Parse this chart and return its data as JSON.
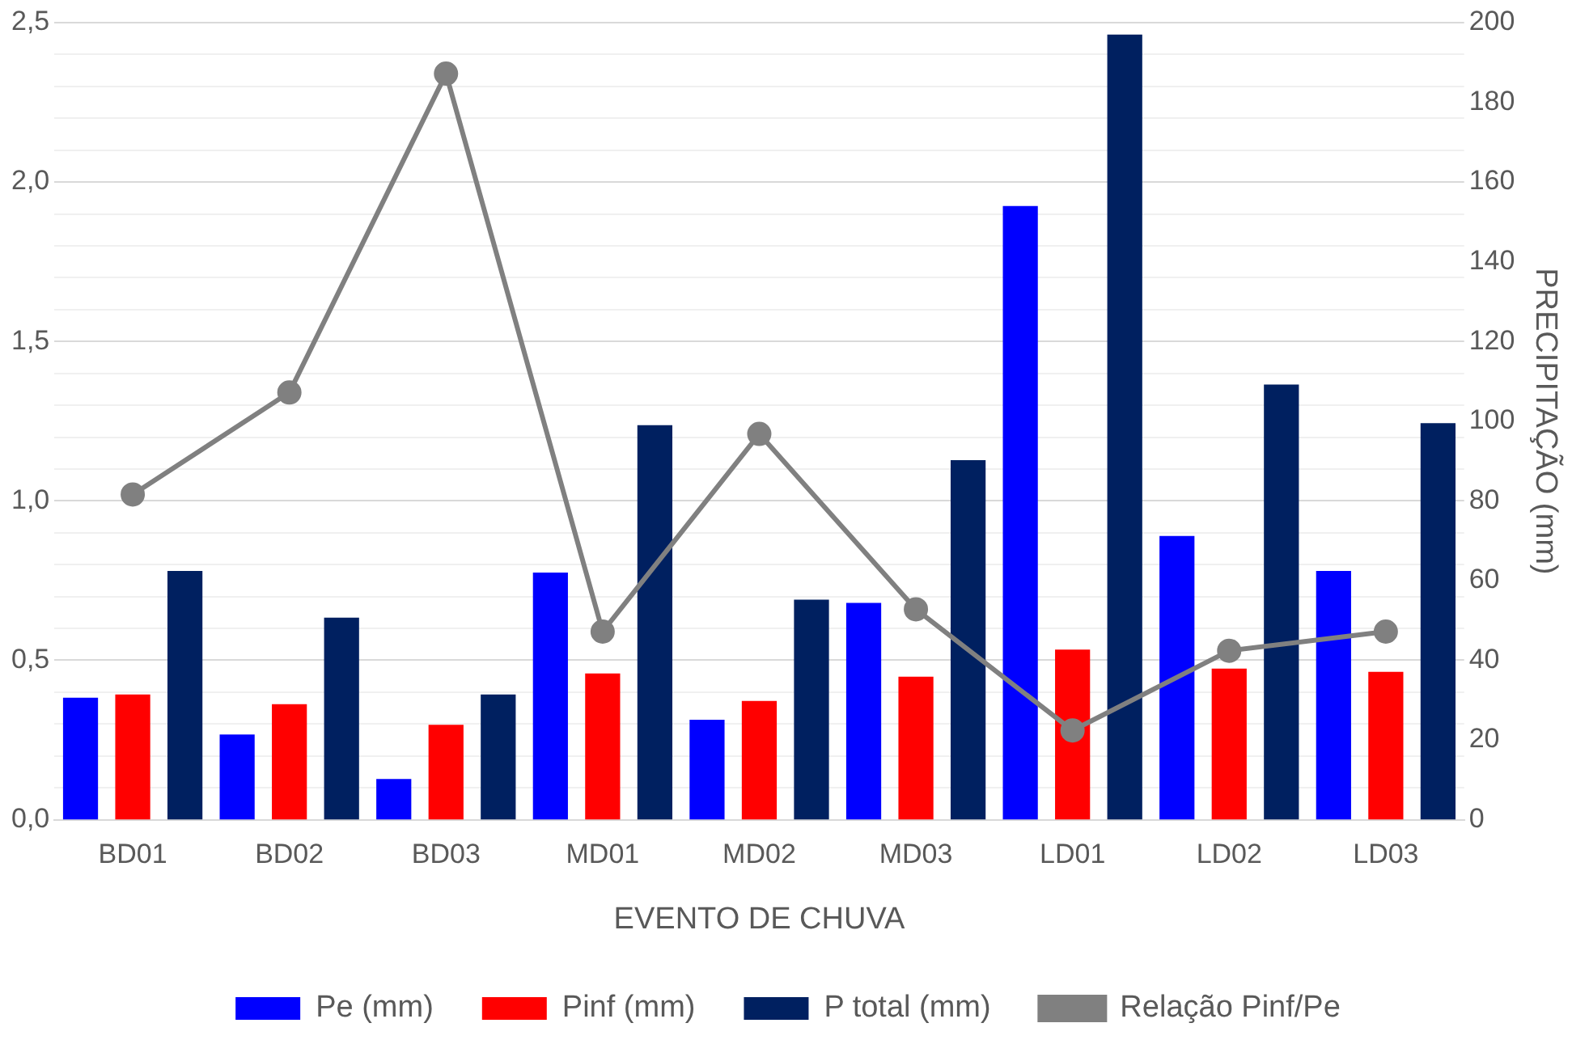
{
  "chart_data": {
    "type": "bar",
    "xlabel": "EVENTO DE CHUVA",
    "y2label": "PRECIPITAÇÃO (mm)",
    "categories": [
      "BD01",
      "BD02",
      "BD03",
      "MD01",
      "MD02",
      "MD03",
      "LD01",
      "LD02",
      "LD03"
    ],
    "series": [
      {
        "name": "Pe (mm)",
        "color": "#0000ff",
        "axis": "y2",
        "values": [
          30.6,
          21.4,
          10.2,
          62,
          25.1,
          54.4,
          154,
          71.2,
          62.4
        ]
      },
      {
        "name": "Pinf (mm)",
        "color": "#ff0000",
        "axis": "y2",
        "values": [
          31.4,
          29,
          23.8,
          36.7,
          29.8,
          35.9,
          42.7,
          37.9,
          37.1
        ]
      },
      {
        "name": "P total (mm)",
        "color": "#002060",
        "axis": "y2",
        "values": [
          62.4,
          50.7,
          31.4,
          99,
          55.2,
          90.2,
          197,
          109.2,
          99.5
        ]
      },
      {
        "name": "Relação Pinf/Pe",
        "type": "line",
        "color": "#808080",
        "axis": "y",
        "marker": "circle",
        "values": [
          1.02,
          1.34,
          2.34,
          0.59,
          1.21,
          0.66,
          0.28,
          0.53,
          0.59
        ]
      }
    ],
    "ylim": [
      0,
      2.5
    ],
    "yticks": [
      {
        "value": 0,
        "label": "0,0"
      },
      {
        "value": 0.1,
        "label": null
      },
      {
        "value": 0.2,
        "label": null
      },
      {
        "value": 0.3,
        "label": null
      },
      {
        "value": 0.4,
        "label": null
      },
      {
        "value": 0.5,
        "label": "0,5"
      },
      {
        "value": 0.6,
        "label": null
      },
      {
        "value": 0.7,
        "label": null
      },
      {
        "value": 0.8,
        "label": null
      },
      {
        "value": 0.9,
        "label": null
      },
      {
        "value": 1,
        "label": "1,0"
      },
      {
        "value": 1.1,
        "label": null
      },
      {
        "value": 1.2,
        "label": null
      },
      {
        "value": 1.3,
        "label": null
      },
      {
        "value": 1.4,
        "label": null
      },
      {
        "value": 1.5,
        "label": "1,5"
      },
      {
        "value": 1.6,
        "label": null
      },
      {
        "value": 1.7,
        "label": null
      },
      {
        "value": 1.8,
        "label": null
      },
      {
        "value": 1.9,
        "label": null
      },
      {
        "value": 2,
        "label": "2,0"
      },
      {
        "value": 2.1,
        "label": null
      },
      {
        "value": 2.2,
        "label": null
      },
      {
        "value": 2.3,
        "label": null
      },
      {
        "value": 2.4,
        "label": null
      },
      {
        "value": 2.5,
        "label": "2,5"
      }
    ],
    "y2lim": [
      0,
      200
    ],
    "y2ticks": [
      0,
      20,
      40,
      60,
      80,
      100,
      120,
      140,
      160,
      180,
      200
    ],
    "grid": "y",
    "legend": "bottom"
  }
}
